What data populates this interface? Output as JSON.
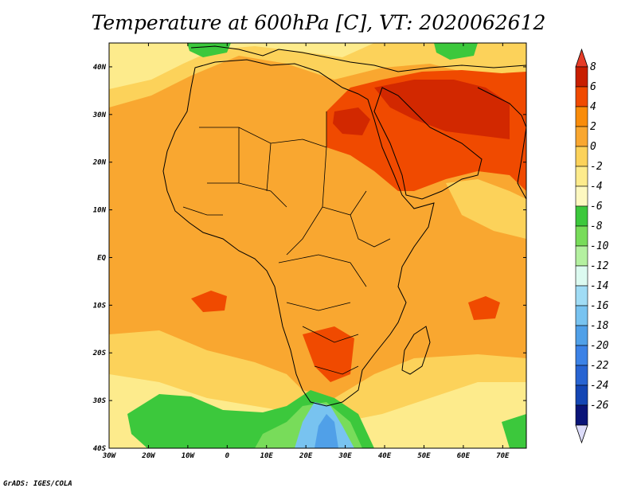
{
  "title": "Temperature at 600hPa [C], VT: 2020062612",
  "credit": "GrADS: IGES/COLA",
  "map": {
    "lon_range": [
      -30,
      76
    ],
    "lat_range": [
      -40,
      45
    ],
    "lon_ticks": [
      {
        "value": -30,
        "label": "30W"
      },
      {
        "value": -20,
        "label": "20W"
      },
      {
        "value": -10,
        "label": "10W"
      },
      {
        "value": 0,
        "label": "0"
      },
      {
        "value": 10,
        "label": "10E"
      },
      {
        "value": 20,
        "label": "20E"
      },
      {
        "value": 30,
        "label": "30E"
      },
      {
        "value": 40,
        "label": "40E"
      },
      {
        "value": 50,
        "label": "50E"
      },
      {
        "value": 60,
        "label": "60E"
      },
      {
        "value": 70,
        "label": "70E"
      }
    ],
    "lat_ticks": [
      {
        "value": 40,
        "label": "40N"
      },
      {
        "value": 30,
        "label": "30N"
      },
      {
        "value": 20,
        "label": "20N"
      },
      {
        "value": 10,
        "label": "10N"
      },
      {
        "value": 0,
        "label": "EQ"
      },
      {
        "value": -10,
        "label": "10S"
      },
      {
        "value": -20,
        "label": "20S"
      },
      {
        "value": -30,
        "label": "30S"
      },
      {
        "value": -40,
        "label": "40S"
      }
    ]
  },
  "colorbar": {
    "levels": [
      {
        "label": "8",
        "color": "#c81e00"
      },
      {
        "label": "6",
        "color": "#f04a00"
      },
      {
        "label": "4",
        "color": "#f98c0a"
      },
      {
        "label": "2",
        "color": "#f9a730"
      },
      {
        "label": "0",
        "color": "#fcd25a"
      },
      {
        "label": "-2",
        "color": "#fdeb8c"
      },
      {
        "label": "-4",
        "color": "#fdf8c0"
      },
      {
        "label": "-6",
        "color": "#3cc83c"
      },
      {
        "label": "-8",
        "color": "#78dc5a"
      },
      {
        "label": "-10",
        "color": "#b4f0a0"
      },
      {
        "label": "-12",
        "color": "#dcfaf0"
      },
      {
        "label": "-14",
        "color": "#a0dcf5"
      },
      {
        "label": "-16",
        "color": "#78c3f0"
      },
      {
        "label": "-18",
        "color": "#50a0e8"
      },
      {
        "label": "-20",
        "color": "#3c82e6"
      },
      {
        "label": "-22",
        "color": "#2864d2"
      },
      {
        "label": "-24",
        "color": "#1446b4"
      },
      {
        "label": "-26",
        "color": "#0a1478"
      }
    ],
    "top_color": "#e63c28",
    "bottom_color": "#dcdcfa"
  },
  "colors": {
    "field_base": "#f9a730",
    "warm_core": "#f04a00",
    "hot_core": "#d22800",
    "cool_band": "#fcd25a",
    "pale_band": "#fdeb8c",
    "cold_green": "#3cc83c",
    "cold_blue": "#78c3f0"
  }
}
